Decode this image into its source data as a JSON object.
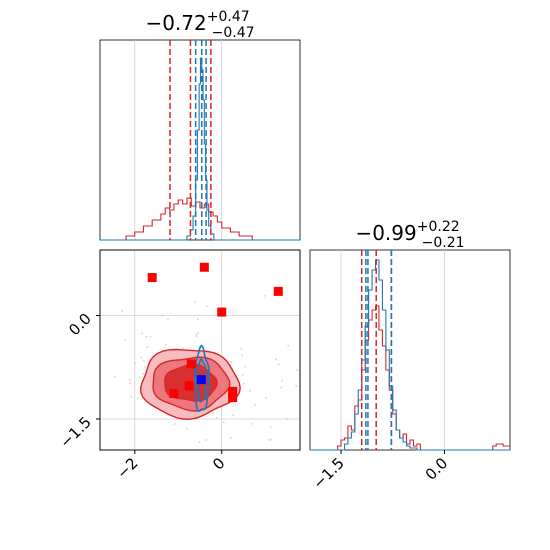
{
  "chart_data": [
    {
      "type": "histogram",
      "panel": "top-left marginal (parameter 1)",
      "title": {
        "base": "−0.72",
        "plus": "+0.47",
        "minus": "−0.47"
      },
      "xlim": [
        -2.8,
        1.8
      ],
      "grid": true,
      "quantiles_red": [
        -1.19,
        -0.72,
        -0.25
      ],
      "quantiles_blue": [
        -0.6,
        -0.46,
        -0.36
      ],
      "series": [
        {
          "color": "#d62728",
          "bins": [
            [
              -2.8,
              -2.2,
              0
            ],
            [
              -2.2,
              -2.0,
              0.02
            ],
            [
              -2.0,
              -1.8,
              0.04
            ],
            [
              -1.8,
              -1.6,
              0.07
            ],
            [
              -1.6,
              -1.4,
              0.1
            ],
            [
              -1.4,
              -1.3,
              0.13
            ],
            [
              -1.3,
              -1.2,
              0.16
            ],
            [
              -1.2,
              -1.1,
              0.15
            ],
            [
              -1.1,
              -1.0,
              0.18
            ],
            [
              -1.0,
              -0.9,
              0.2
            ],
            [
              -0.9,
              -0.8,
              0.18
            ],
            [
              -0.8,
              -0.7,
              0.21
            ],
            [
              -0.7,
              -0.6,
              0.17
            ],
            [
              -0.6,
              -0.5,
              0.19
            ],
            [
              -0.5,
              -0.4,
              0.16
            ],
            [
              -0.4,
              -0.3,
              0.18
            ],
            [
              -0.3,
              -0.2,
              0.14
            ],
            [
              -0.2,
              -0.1,
              0.12
            ],
            [
              -0.1,
              0.0,
              0.09
            ],
            [
              0.0,
              0.2,
              0.06
            ],
            [
              0.2,
              0.4,
              0.04
            ],
            [
              0.4,
              0.7,
              0.02
            ],
            [
              0.7,
              1.8,
              0
            ]
          ]
        },
        {
          "color": "#1f77b4",
          "bins": [
            [
              -2.8,
              -0.8,
              0
            ],
            [
              -0.8,
              -0.72,
              0.02
            ],
            [
              -0.72,
              -0.66,
              0.05
            ],
            [
              -0.66,
              -0.6,
              0.12
            ],
            [
              -0.6,
              -0.56,
              0.3
            ],
            [
              -0.56,
              -0.52,
              0.55
            ],
            [
              -0.52,
              -0.49,
              0.78
            ],
            [
              -0.49,
              -0.46,
              0.91
            ],
            [
              -0.46,
              -0.43,
              0.85
            ],
            [
              -0.43,
              -0.4,
              0.7
            ],
            [
              -0.4,
              -0.37,
              0.48
            ],
            [
              -0.37,
              -0.34,
              0.3
            ],
            [
              -0.34,
              -0.3,
              0.15
            ],
            [
              -0.3,
              -0.25,
              0.07
            ],
            [
              -0.25,
              -0.18,
              0.03
            ],
            [
              -0.18,
              1.8,
              0
            ]
          ]
        }
      ],
      "ylim": [
        0,
        1.0
      ]
    },
    {
      "type": "scatter",
      "panel": "bottom-left 2D (parameter 1 vs parameter 2)",
      "xlim": [
        -2.8,
        1.8
      ],
      "ylim": [
        -1.95,
        0.95
      ],
      "grid": true,
      "xticks": [
        "−2",
        "0"
      ],
      "yticks": [
        "0.0",
        "−1.5"
      ],
      "xtick_values": [
        -2,
        0
      ],
      "ytick_values": [
        0.0,
        -1.5
      ],
      "red_markers": [
        {
          "x": -1.6,
          "y": 0.55
        },
        {
          "x": -0.4,
          "y": 0.7
        },
        {
          "x": 1.3,
          "y": 0.35
        },
        {
          "x": 0.0,
          "y": 0.05
        },
        {
          "x": -0.7,
          "y": -0.7
        },
        {
          "x": -1.1,
          "y": -1.13
        },
        {
          "x": -0.75,
          "y": -1.02
        },
        {
          "x": 0.25,
          "y": -1.1
        },
        {
          "x": 0.25,
          "y": -1.19
        }
      ],
      "blue_marker": {
        "x": -0.47,
        "y": -0.93
      },
      "red_contours": [
        {
          "cx": -0.75,
          "cy": -0.98,
          "rx": 1.12,
          "ry": 0.5
        },
        {
          "cx": -0.72,
          "cy": -0.98,
          "rx": 0.88,
          "ry": 0.38
        },
        {
          "cx": -0.72,
          "cy": -0.98,
          "rx": 0.6,
          "ry": 0.26
        }
      ],
      "blue_contours": [
        {
          "cx": -0.46,
          "cy": -0.94,
          "rx": 0.16,
          "ry": 0.46
        },
        {
          "cx": -0.46,
          "cy": -0.94,
          "rx": 0.1,
          "ry": 0.3
        }
      ]
    },
    {
      "type": "histogram",
      "panel": "bottom-right marginal (parameter 2)",
      "title": {
        "base": "−0.99",
        "plus": "+0.22",
        "minus": "−0.21"
      },
      "xlim": [
        -1.95,
        0.95
      ],
      "xticks": [
        "−1.5",
        "0.0"
      ],
      "xtick_values": [
        -1.5,
        0.0
      ],
      "grid": true,
      "quantiles_red": [
        -1.2,
        -0.99,
        -0.77
      ],
      "quantiles_blue": [
        -1.14,
        -1.11,
        -0.77
      ],
      "series": [
        {
          "color": "#d62728",
          "bins": [
            [
              -1.95,
              -1.55,
              0
            ],
            [
              -1.55,
              -1.5,
              0.02
            ],
            [
              -1.5,
              -1.45,
              0.05
            ],
            [
              -1.45,
              -1.4,
              0.06
            ],
            [
              -1.4,
              -1.35,
              0.12
            ],
            [
              -1.35,
              -1.3,
              0.1
            ],
            [
              -1.3,
              -1.25,
              0.22
            ],
            [
              -1.25,
              -1.2,
              0.25
            ],
            [
              -1.2,
              -1.15,
              0.4
            ],
            [
              -1.15,
              -1.1,
              0.55
            ],
            [
              -1.1,
              -1.05,
              0.65
            ],
            [
              -1.05,
              -1.0,
              0.7
            ],
            [
              -1.0,
              -0.95,
              0.72
            ],
            [
              -0.95,
              -0.9,
              0.6
            ],
            [
              -0.9,
              -0.85,
              0.52
            ],
            [
              -0.85,
              -0.8,
              0.4
            ],
            [
              -0.8,
              -0.75,
              0.3
            ],
            [
              -0.75,
              -0.7,
              0.18
            ],
            [
              -0.7,
              -0.65,
              0.1
            ],
            [
              -0.65,
              -0.6,
              0.06
            ],
            [
              -0.6,
              -0.55,
              0.08
            ],
            [
              -0.55,
              -0.5,
              0.03
            ],
            [
              -0.5,
              -0.45,
              0.05
            ],
            [
              -0.45,
              -0.4,
              0.02
            ],
            [
              -0.4,
              -0.35,
              0.03
            ],
            [
              -0.35,
              0.7,
              0
            ],
            [
              0.7,
              0.75,
              0.02
            ],
            [
              0.75,
              0.85,
              0.03
            ],
            [
              0.85,
              0.95,
              0.02
            ]
          ]
        },
        {
          "color": "#1f77b4",
          "bins": [
            [
              -1.95,
              -1.45,
              0
            ],
            [
              -1.45,
              -1.4,
              0.03
            ],
            [
              -1.4,
              -1.35,
              0.06
            ],
            [
              -1.35,
              -1.3,
              0.09
            ],
            [
              -1.3,
              -1.25,
              0.18
            ],
            [
              -1.25,
              -1.2,
              0.3
            ],
            [
              -1.2,
              -1.15,
              0.45
            ],
            [
              -1.15,
              -1.1,
              0.62
            ],
            [
              -1.1,
              -1.05,
              0.8
            ],
            [
              -1.05,
              -1.0,
              0.9
            ],
            [
              -1.0,
              -0.95,
              0.95
            ],
            [
              -0.95,
              -0.9,
              0.85
            ],
            [
              -0.9,
              -0.85,
              0.7
            ],
            [
              -0.85,
              -0.8,
              0.5
            ],
            [
              -0.8,
              -0.75,
              0.32
            ],
            [
              -0.75,
              -0.7,
              0.2
            ],
            [
              -0.7,
              -0.65,
              0.1
            ],
            [
              -0.65,
              -0.6,
              0.06
            ],
            [
              -0.6,
              -0.55,
              0.04
            ],
            [
              -0.55,
              -0.5,
              0.02
            ],
            [
              -0.5,
              -0.4,
              0.01
            ],
            [
              -0.4,
              0.95,
              0
            ]
          ]
        }
      ],
      "ylim": [
        0,
        1.0
      ]
    }
  ]
}
